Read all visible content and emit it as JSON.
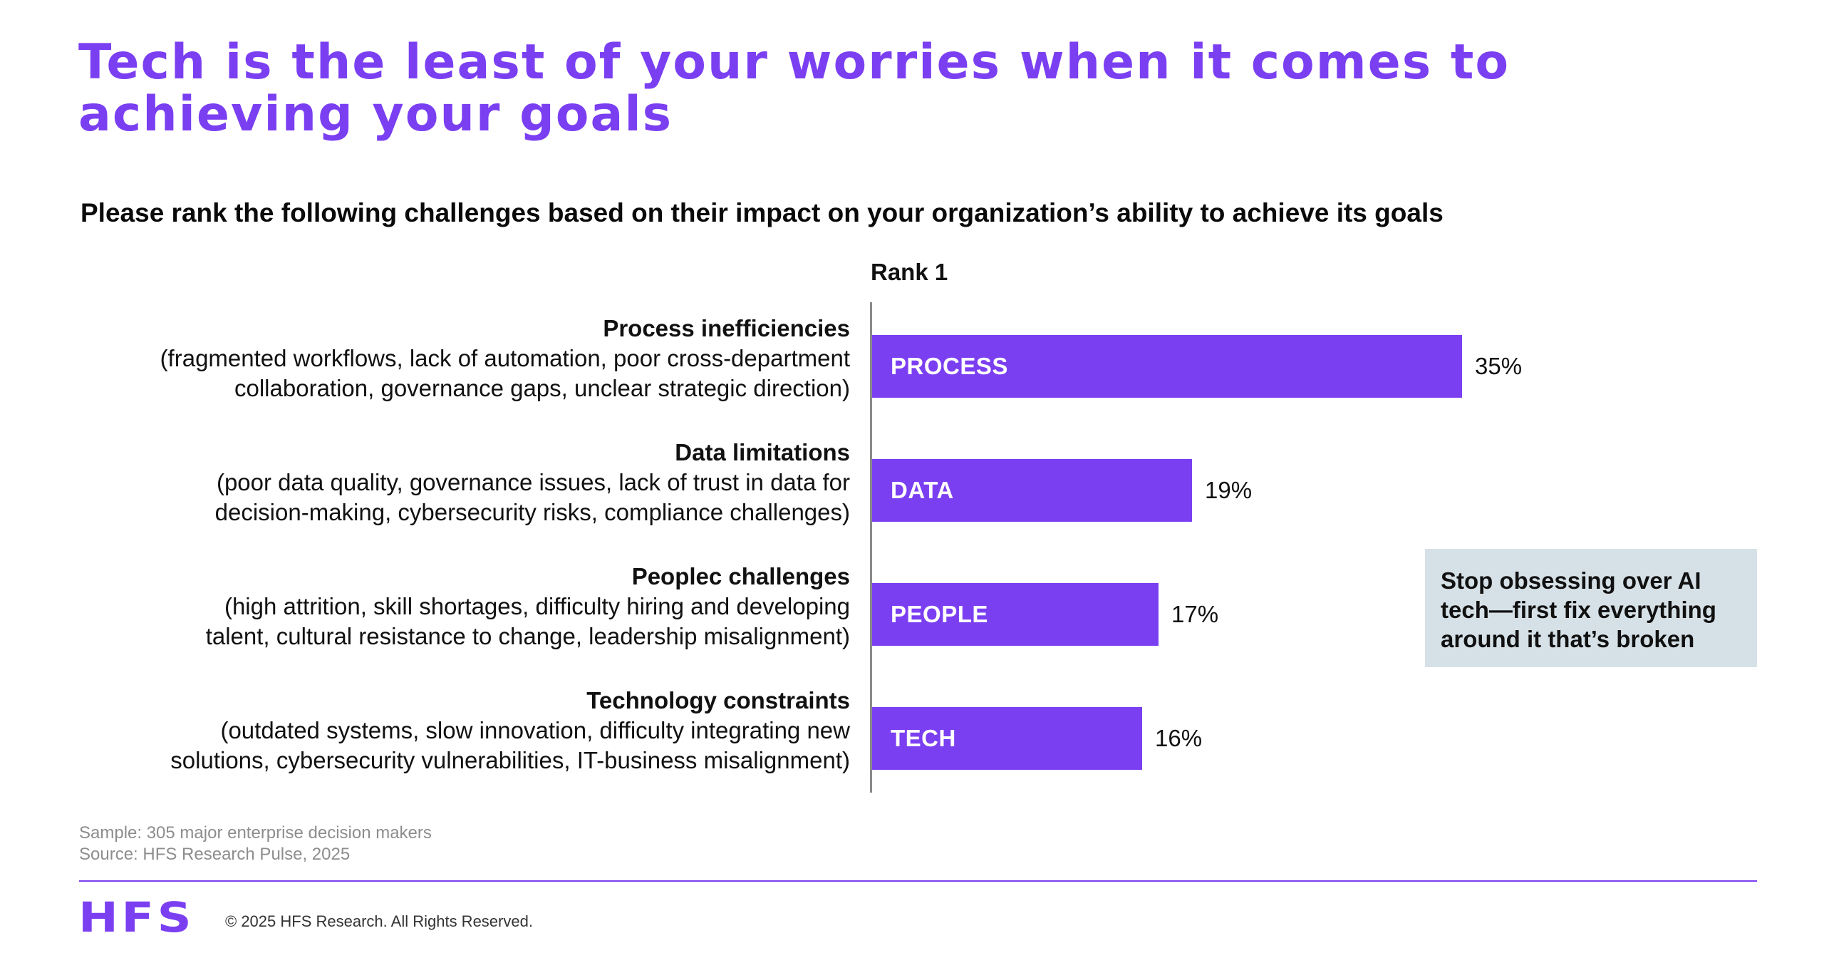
{
  "title": "Tech is the least of your worries when it comes to achieving your goals",
  "subtitle": "Please rank the following challenges based on their impact on your organization’s ability to achieve its goals",
  "rank_label": "Rank 1",
  "colors": {
    "accent": "#7b3ff2",
    "callout_bg": "#d6e1e7"
  },
  "rows": [
    {
      "name": "Process inefficiencies",
      "desc_line1": "(fragmented workflows, lack of automation, poor cross-department",
      "desc_line2": "collaboration, governance gaps, unclear strategic direction)"
    },
    {
      "name": "Data limitations",
      "desc_line1": "(poor data quality, governance issues, lack of trust in data for",
      "desc_line2": "decision-making, cybersecurity risks, compliance challenges)"
    },
    {
      "name": "Peoplec challenges",
      "desc_line1": "(high attrition, skill shortages, difficulty hiring and developing",
      "desc_line2": "talent, cultural resistance to change, leadership misalignment)"
    },
    {
      "name": "Technology constraints",
      "desc_line1": "(outdated systems, slow innovation, difficulty integrating new",
      "desc_line2": "solutions, cybersecurity vulnerabilities, IT-business misalignment)"
    }
  ],
  "chart_data": {
    "type": "bar",
    "orientation": "horizontal",
    "categories": [
      "PROCESS",
      "DATA",
      "PEOPLE",
      "TECH"
    ],
    "values": [
      35,
      19,
      17,
      16
    ],
    "value_labels": [
      "35%",
      "19%",
      "17%",
      "16%"
    ],
    "title": "Rank 1",
    "xlim": [
      0,
      35
    ],
    "grid": false,
    "legend": "none"
  },
  "callout": "Stop obsessing over AI tech—first fix everything around it that’s broken",
  "sample": "Sample: 305 major enterprise decision makers",
  "source": "Source: HFS Research Pulse, 2025",
  "logo": "HFS",
  "copyright": "© 2025 HFS Research. All Rights Reserved."
}
